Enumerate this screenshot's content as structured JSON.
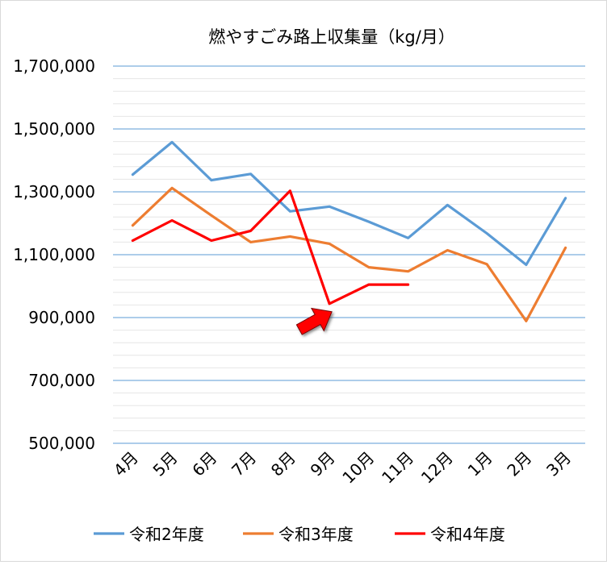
{
  "chart_data": {
    "type": "line",
    "title": "燃やすごみ路上収集量（kg/月）",
    "xlabel": "",
    "ylabel": "",
    "categories": [
      "4月",
      "5月",
      "6月",
      "7月",
      "8月",
      "9月",
      "10月",
      "11月",
      "12月",
      "1月",
      "2月",
      "3月"
    ],
    "ylim": [
      500000,
      1700000
    ],
    "yticks": [
      500000,
      700000,
      900000,
      1100000,
      1300000,
      1500000,
      1700000
    ],
    "ytick_labels": [
      "500,000",
      "700,000",
      "900,000",
      "1,100,000",
      "1,300,000",
      "1,500,000",
      "1,700,000"
    ],
    "grid": true,
    "legend_position": "bottom",
    "series": [
      {
        "name": "令和2年度",
        "color": "#5b9bd5",
        "values": [
          1355000,
          1458000,
          1337000,
          1357000,
          1238000,
          1253000,
          1205000,
          1153000,
          1258000,
          1168000,
          1068000,
          1280000
        ]
      },
      {
        "name": "令和3年度",
        "color": "#ed7d31",
        "values": [
          1193000,
          1312000,
          1225000,
          1140000,
          1158000,
          1135000,
          1060000,
          1047000,
          1114000,
          1070000,
          889000,
          1122000
        ]
      },
      {
        "name": "令和4年度",
        "color": "#ff0000",
        "values": [
          1145000,
          1209000,
          1145000,
          1176000,
          1303000,
          944000,
          1005000,
          1005000,
          null,
          null,
          null,
          null
        ]
      }
    ],
    "annotations": [
      {
        "type": "arrow",
        "color": "#ff0000",
        "target_category": "9月"
      }
    ]
  }
}
